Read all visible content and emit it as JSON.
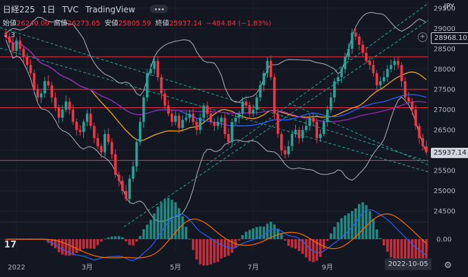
{
  "header": {
    "symbol": "日経225",
    "interval": "1日",
    "source": "TVC",
    "brand": "TradingView"
  },
  "ohlc": [
    {
      "label": "始値",
      "value": "26240.00"
    },
    {
      "label": "高値",
      "value": "26273.65"
    },
    {
      "label": "安値",
      "value": "25805.59"
    },
    {
      "label": "終値",
      "value": "25937.14"
    },
    {
      "label": "",
      "value": "−484.84 (−1.83%)"
    }
  ],
  "indicator_count": "3",
  "currency": "JPY",
  "price_tags": {
    "hover": "28968.10",
    "last": "25937.14"
  },
  "date_tag": "2022-10-05",
  "macd_label": "0.00",
  "colors": {
    "up": "#26a69a",
    "down": "#f23645",
    "background": "#131722",
    "grid": "#1e222d",
    "hline": "#f23645"
  },
  "chart_data": {
    "type": "candlestick",
    "x_ticks": [
      "2022",
      "3月",
      "5月",
      "7月",
      "9月"
    ],
    "y_ticks": [
      24500,
      25000,
      25500,
      26000,
      26500,
      27000,
      27500,
      28000,
      28500,
      29000,
      29500
    ],
    "ylim": [
      24250,
      29700
    ],
    "last_close": 25937.14,
    "horizontal_lines": [
      28300,
      27500,
      27050,
      25750
    ],
    "close_series": [
      28800,
      28650,
      28450,
      28700,
      28500,
      28300,
      28100,
      27900,
      27500,
      27300,
      27400,
      27700,
      27600,
      27300,
      27050,
      26800,
      27000,
      27200,
      27000,
      26700,
      26500,
      26450,
      26700,
      26900,
      26600,
      26300,
      26100,
      25950,
      26400,
      26200,
      25900,
      25400,
      25250,
      25000,
      24800,
      25300,
      25600,
      26200,
      26700,
      27300,
      27900,
      28000,
      28200,
      27800,
      27400,
      27100,
      26900,
      26700,
      26850,
      26550,
      26750,
      26800,
      26900,
      26700,
      26500,
      26800,
      27100,
      26900,
      26700,
      26600,
      26700,
      26800,
      26400,
      26200,
      26700,
      26800,
      26900,
      27200,
      27100,
      26900,
      27000,
      27300,
      27600,
      27900,
      28200,
      27800,
      26900,
      26400,
      26000,
      25900,
      26100,
      26400,
      26500,
      26300,
      26500,
      26600,
      26800,
      26700,
      26300,
      26400,
      26700,
      27000,
      27300,
      27700,
      27800,
      28000,
      28300,
      28500,
      28900,
      28800,
      28600,
      28400,
      28200,
      28100,
      27900,
      27600,
      27700,
      27800,
      28000,
      28100,
      28200,
      28100,
      27700,
      27300,
      27200,
      27000,
      26600,
      26300,
      26100,
      25950
    ]
  }
}
